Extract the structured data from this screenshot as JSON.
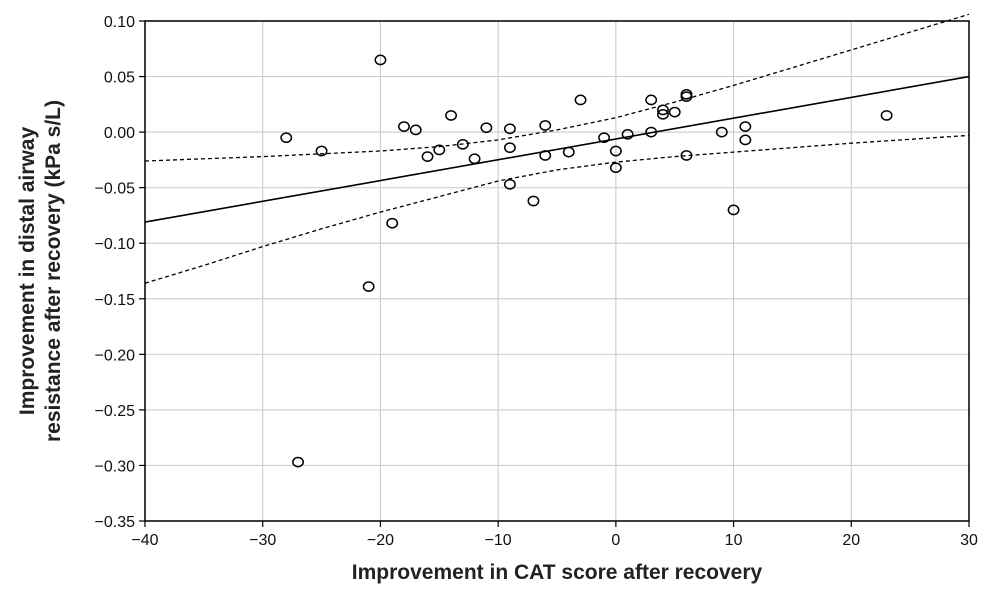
{
  "chart_data": {
    "type": "scatter",
    "title": "",
    "xlabel": "Improvement in CAT score after recovery",
    "ylabel_lines": [
      "Improvement in distal airway",
      "resistance after recovery (kPa s/L)"
    ],
    "xlim": [
      -40,
      30
    ],
    "ylim": [
      -0.35,
      0.1
    ],
    "x_ticks": [
      -40,
      -30,
      -20,
      -10,
      0,
      10,
      20,
      30
    ],
    "x_tick_labels": [
      "−40",
      "−30",
      "−20",
      "−10",
      "0",
      "10",
      "20",
      "30"
    ],
    "y_ticks": [
      0.1,
      0.05,
      0.0,
      -0.05,
      -0.1,
      -0.15,
      -0.2,
      -0.25,
      -0.3,
      -0.35
    ],
    "y_tick_labels": [
      "0.10",
      "0.05",
      "0.00",
      "−0.05",
      "−0.10",
      "−0.15",
      "−0.20",
      "−0.25",
      "−0.30",
      "−0.35"
    ],
    "grid": true,
    "points": [
      {
        "x": -28,
        "y": -0.005
      },
      {
        "x": -27,
        "y": -0.297
      },
      {
        "x": -25,
        "y": -0.017
      },
      {
        "x": -21,
        "y": -0.139
      },
      {
        "x": -20,
        "y": 0.065
      },
      {
        "x": -19,
        "y": -0.082
      },
      {
        "x": -18,
        "y": 0.005
      },
      {
        "x": -17,
        "y": 0.002
      },
      {
        "x": -16,
        "y": -0.022
      },
      {
        "x": -15,
        "y": -0.016
      },
      {
        "x": -14,
        "y": 0.015
      },
      {
        "x": -13,
        "y": -0.011
      },
      {
        "x": -12,
        "y": -0.024
      },
      {
        "x": -11,
        "y": 0.004
      },
      {
        "x": -9,
        "y": 0.003
      },
      {
        "x": -9,
        "y": -0.014
      },
      {
        "x": -9,
        "y": -0.047
      },
      {
        "x": -7,
        "y": -0.062
      },
      {
        "x": -6,
        "y": 0.006
      },
      {
        "x": -6,
        "y": -0.021
      },
      {
        "x": -4,
        "y": -0.018
      },
      {
        "x": -3,
        "y": 0.029
      },
      {
        "x": -1,
        "y": -0.005
      },
      {
        "x": 0,
        "y": -0.017
      },
      {
        "x": 0,
        "y": -0.032
      },
      {
        "x": 1,
        "y": -0.002
      },
      {
        "x": 3,
        "y": 0.029
      },
      {
        "x": 3,
        "y": 0.0
      },
      {
        "x": 4,
        "y": 0.02
      },
      {
        "x": 4,
        "y": 0.016
      },
      {
        "x": 5,
        "y": 0.018
      },
      {
        "x": 6,
        "y": 0.034
      },
      {
        "x": 6,
        "y": 0.032
      },
      {
        "x": 6,
        "y": -0.021
      },
      {
        "x": 9,
        "y": 0.0
      },
      {
        "x": 10,
        "y": -0.07
      },
      {
        "x": 11,
        "y": 0.005
      },
      {
        "x": 11,
        "y": -0.007
      },
      {
        "x": 23,
        "y": 0.015
      }
    ],
    "regression_line": {
      "style": "solid",
      "x": [
        -40,
        30
      ],
      "y": [
        -0.081,
        0.05
      ]
    },
    "confidence_band_upper": {
      "style": "dashed",
      "x": [
        -40,
        -30,
        -20,
        -15,
        -10,
        -5,
        0,
        5,
        10,
        15,
        20,
        25,
        30
      ],
      "y": [
        -0.026,
        -0.022,
        -0.017,
        -0.013,
        -0.007,
        0.002,
        0.013,
        0.027,
        0.042,
        0.058,
        0.074,
        0.09,
        0.106
      ]
    },
    "confidence_band_lower": {
      "style": "dashed",
      "x": [
        -40,
        -35,
        -30,
        -25,
        -20,
        -15,
        -10,
        -5,
        0,
        5,
        10,
        20,
        30
      ],
      "y": [
        -0.136,
        -0.12,
        -0.103,
        -0.087,
        -0.072,
        -0.058,
        -0.044,
        -0.034,
        -0.027,
        -0.022,
        -0.018,
        -0.01,
        -0.003
      ]
    }
  }
}
